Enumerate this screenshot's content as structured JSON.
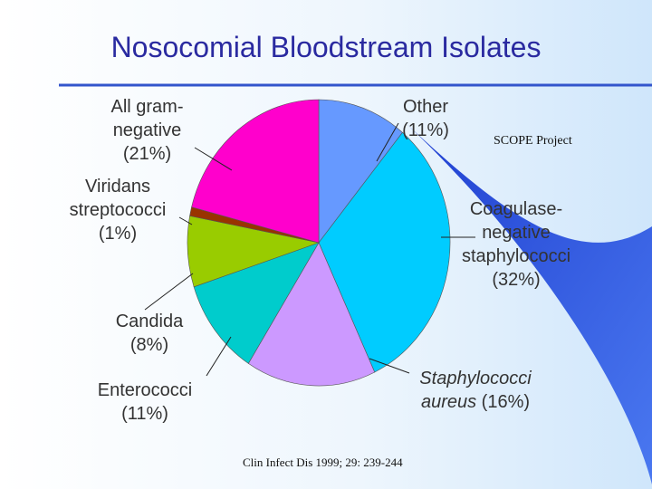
{
  "chart_data": {
    "type": "pie",
    "title": "Nosocomial Bloodstream Isolates",
    "subtitle": "SCOPE Project",
    "source": "Clin Infect Dis 1999; 29: 239-244",
    "categories": [
      "Other",
      "Coagulase-negative staphylococci",
      "Staphylococci aureus",
      "Enterococci",
      "Candida",
      "Viridans streptococci",
      "All gram-negative"
    ],
    "values": [
      11,
      32,
      16,
      11,
      8,
      1,
      21
    ],
    "value_labels": [
      "(11%)",
      "(32%)",
      "(16%)",
      "(11%)",
      "(8%)",
      "(1%)",
      "(21%)"
    ],
    "colors": [
      "#6699ff",
      "#00ccff",
      "#cc99ff",
      "#00cccc",
      "#99cc00",
      "#993300",
      "#ff00cc"
    ]
  }
}
